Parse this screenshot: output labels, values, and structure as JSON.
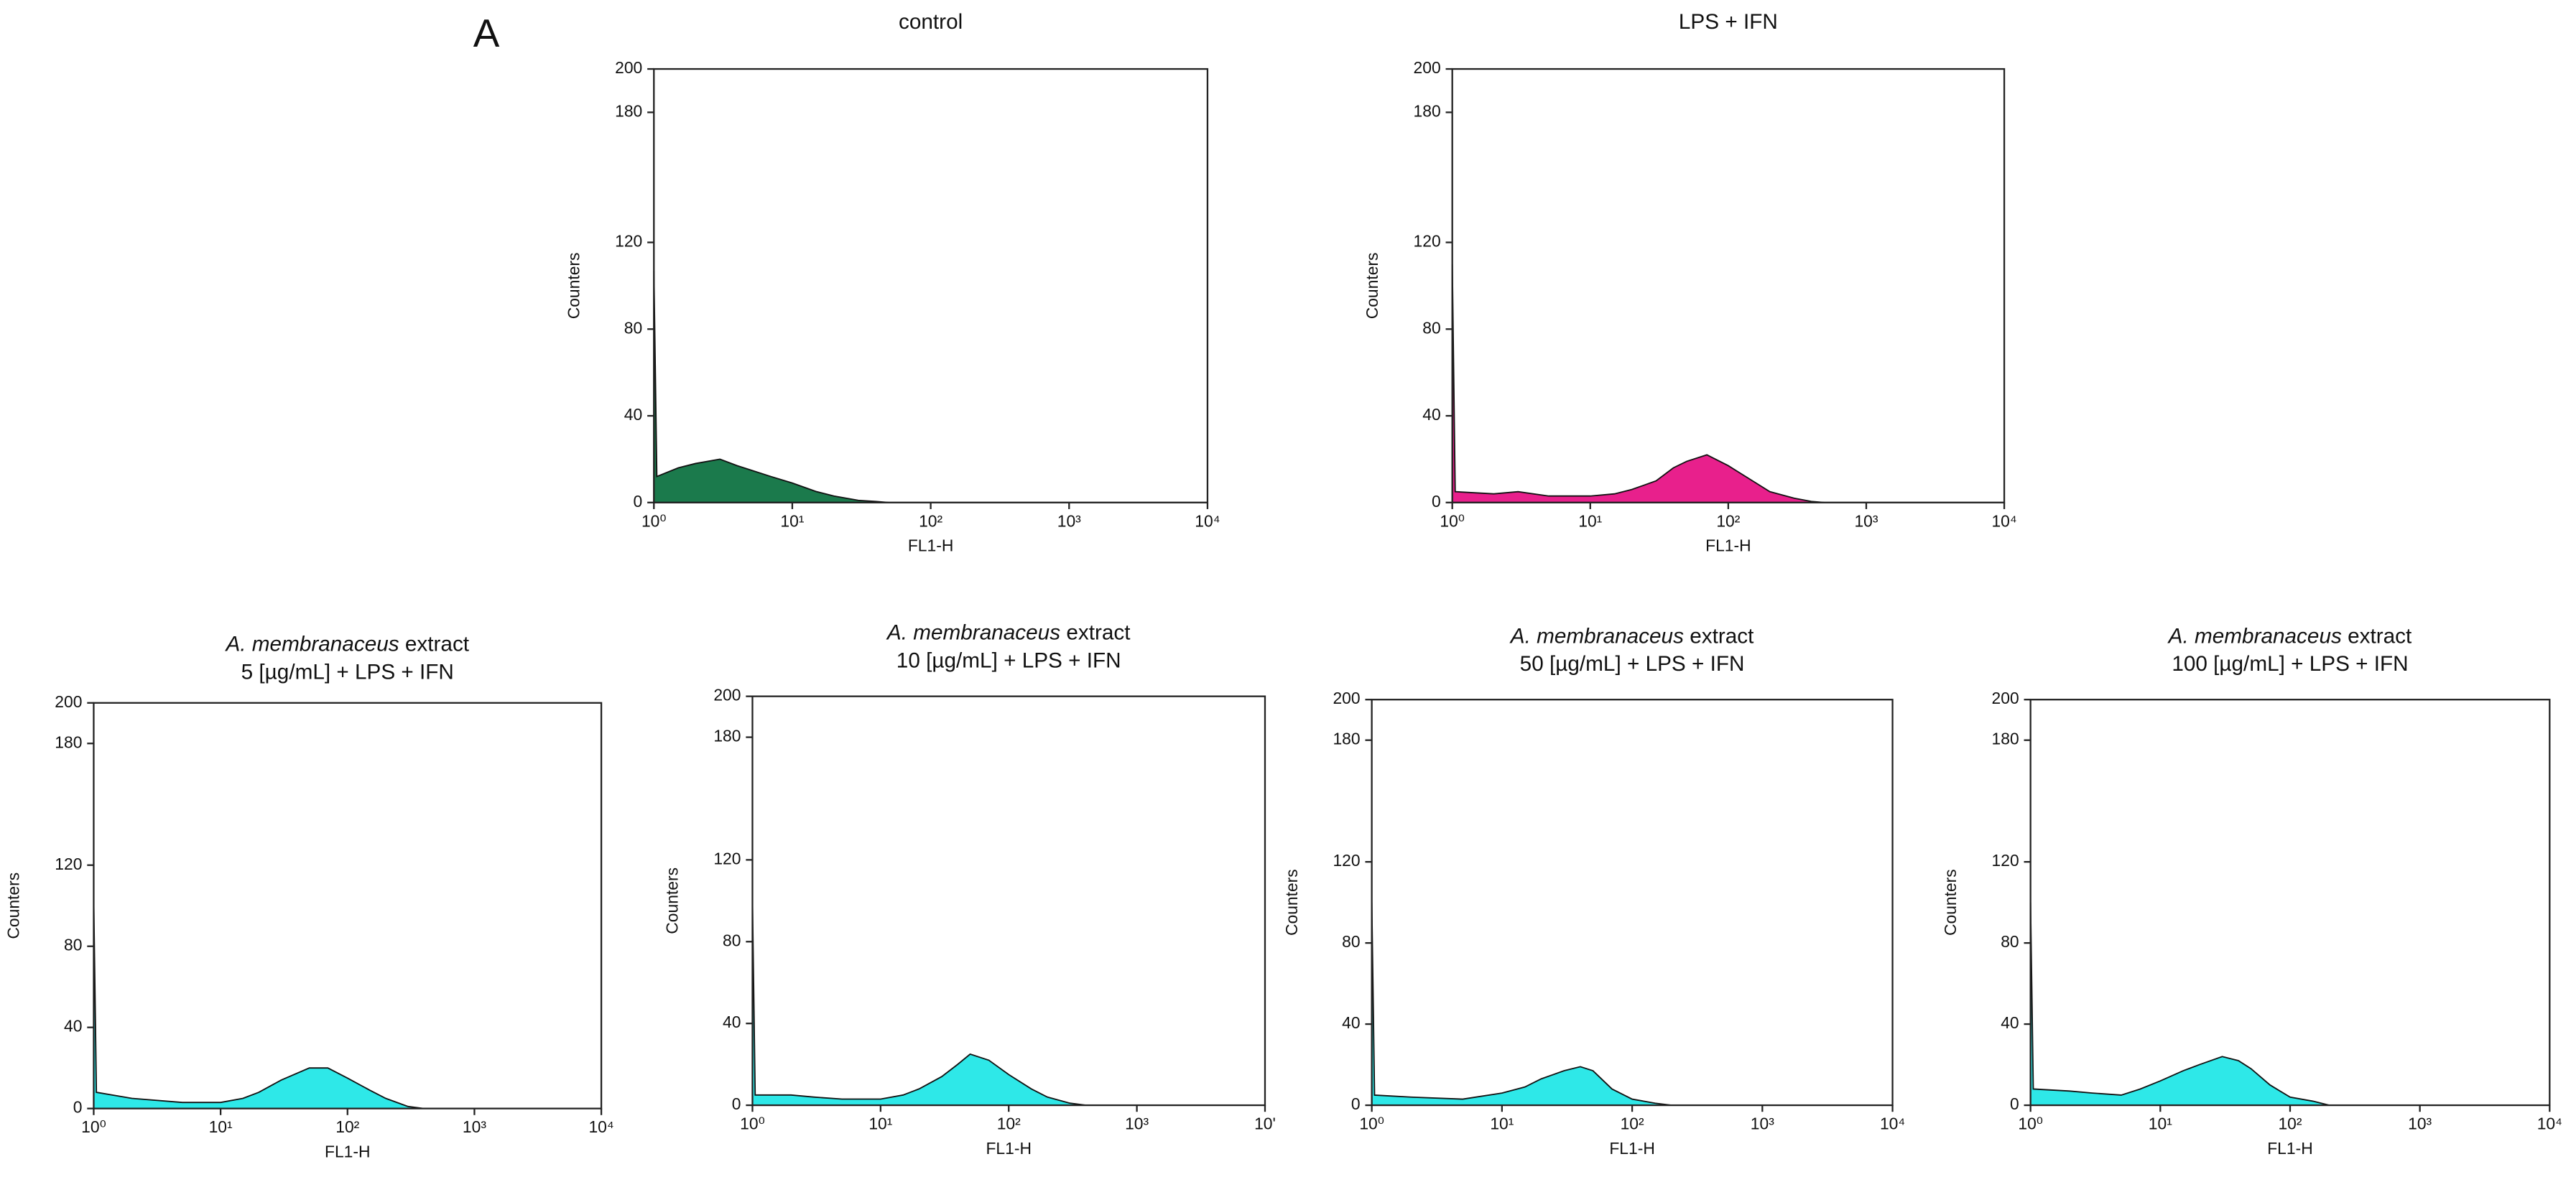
{
  "panel_label": "A",
  "chart_data": [
    {
      "type": "area",
      "title_lines": [
        [
          {
            "text": "control"
          }
        ]
      ],
      "xlabel": "FL1-H",
      "ylabel": "Counters",
      "xscale": "log",
      "color": "#1b7a4c",
      "xlim": [
        1,
        10000
      ],
      "ylim": [
        0,
        200
      ],
      "xticks": [
        {
          "value": 1,
          "label": "10⁰"
        },
        {
          "value": 10,
          "label": "10¹"
        },
        {
          "value": 100,
          "label": "10²"
        },
        {
          "value": 1000,
          "label": "10³"
        },
        {
          "value": 10000,
          "label": "10⁴"
        }
      ],
      "yticks": [
        0,
        40,
        80,
        120,
        180,
        200
      ],
      "x": [
        1,
        1.05,
        1.5,
        2,
        3,
        4,
        5,
        7,
        10,
        15,
        20,
        30,
        40,
        50,
        10000
      ],
      "values": [
        107,
        12,
        16,
        18,
        20,
        17,
        15,
        12,
        9,
        5,
        3,
        1,
        0.5,
        0,
        0
      ]
    },
    {
      "type": "area",
      "title_lines": [
        [
          {
            "text": "LPS + IFN"
          }
        ]
      ],
      "xlabel": "FL1-H",
      "ylabel": "Counters",
      "xscale": "log",
      "color": "#e8208c",
      "xlim": [
        1,
        10000
      ],
      "ylim": [
        0,
        200
      ],
      "xticks": [
        {
          "value": 1,
          "label": "10⁰"
        },
        {
          "value": 10,
          "label": "10¹"
        },
        {
          "value": 100,
          "label": "10²"
        },
        {
          "value": 1000,
          "label": "10³"
        },
        {
          "value": 10000,
          "label": "10⁴"
        }
      ],
      "yticks": [
        0,
        40,
        80,
        120,
        180,
        200
      ],
      "x": [
        1,
        1.05,
        2,
        3,
        5,
        10,
        15,
        20,
        30,
        40,
        50,
        70,
        100,
        150,
        200,
        300,
        400,
        500,
        10000
      ],
      "values": [
        110,
        5,
        4,
        5,
        3,
        3,
        4,
        6,
        10,
        16,
        19,
        22,
        17,
        10,
        5,
        2,
        0.5,
        0,
        0
      ]
    },
    {
      "type": "area",
      "title_lines": [
        [
          {
            "text": "A. membranaceus",
            "italic": true
          },
          {
            "text": " extract"
          }
        ],
        [
          {
            "text": "5 [µg/mL] + LPS + IFN"
          }
        ]
      ],
      "xlabel": "FL1-H",
      "ylabel": "Counters",
      "xscale": "log",
      "color": "#2ee8e8",
      "xlim": [
        1,
        10000
      ],
      "ylim": [
        0,
        200
      ],
      "xticks": [
        {
          "value": 1,
          "label": "10⁰"
        },
        {
          "value": 10,
          "label": "10¹"
        },
        {
          "value": 100,
          "label": "10²"
        },
        {
          "value": 1000,
          "label": "10³"
        },
        {
          "value": 10000,
          "label": "10⁴"
        }
      ],
      "yticks": [
        0,
        40,
        80,
        120,
        180,
        200
      ],
      "x": [
        1,
        1.05,
        2,
        5,
        10,
        15,
        20,
        30,
        50,
        70,
        100,
        150,
        200,
        300,
        400,
        10000
      ],
      "values": [
        103,
        8,
        5,
        3,
        3,
        5,
        8,
        14,
        20,
        20,
        15,
        9,
        5,
        1,
        0,
        0
      ]
    },
    {
      "type": "area",
      "title_lines": [
        [
          {
            "text": "A. membranaceus",
            "italic": true
          },
          {
            "text": " extract"
          }
        ],
        [
          {
            "text": "10 [µg/mL] + LPS + IFN"
          }
        ]
      ],
      "xlabel": "FL1-H",
      "ylabel": "Counters",
      "xscale": "log",
      "color": "#2ee8e8",
      "xlim": [
        1,
        10000
      ],
      "ylim": [
        0,
        200
      ],
      "xticks": [
        {
          "value": 1,
          "label": "10⁰"
        },
        {
          "value": 10,
          "label": "10¹"
        },
        {
          "value": 100,
          "label": "10²"
        },
        {
          "value": 1000,
          "label": "10³"
        },
        {
          "value": 10000,
          "label": "10'"
        }
      ],
      "yticks": [
        0,
        40,
        80,
        120,
        180,
        200
      ],
      "x": [
        1,
        1.05,
        2,
        3,
        5,
        10,
        15,
        20,
        30,
        40,
        50,
        70,
        100,
        150,
        200,
        300,
        400,
        10000
      ],
      "values": [
        100,
        5,
        5,
        4,
        3,
        3,
        5,
        8,
        14,
        20,
        25,
        22,
        15,
        8,
        4,
        1,
        0,
        0
      ]
    },
    {
      "type": "area",
      "title_lines": [
        [
          {
            "text": "A. membranaceus",
            "italic": true
          },
          {
            "text": " extract"
          }
        ],
        [
          {
            "text": "50 [µg/mL] + LPS + IFN"
          }
        ]
      ],
      "xlabel": "FL1-H",
      "ylabel": "Counters",
      "xscale": "log",
      "color": "#2ee8e8",
      "xlim": [
        1,
        10000
      ],
      "ylim": [
        0,
        200
      ],
      "xticks": [
        {
          "value": 1,
          "label": "10⁰"
        },
        {
          "value": 10,
          "label": "10¹"
        },
        {
          "value": 100,
          "label": "10²"
        },
        {
          "value": 1000,
          "label": "10³"
        },
        {
          "value": 10000,
          "label": "10⁴"
        }
      ],
      "yticks": [
        0,
        40,
        80,
        120,
        180,
        200
      ],
      "x": [
        1,
        1.05,
        2,
        5,
        10,
        15,
        20,
        30,
        40,
        50,
        70,
        100,
        150,
        200,
        10000
      ],
      "values": [
        100,
        5,
        4,
        3,
        6,
        9,
        13,
        17,
        19,
        17,
        8,
        3,
        1,
        0,
        0
      ]
    },
    {
      "type": "area",
      "title_lines": [
        [
          {
            "text": "A. membranaceus",
            "italic": true
          },
          {
            "text": " extract"
          }
        ],
        [
          {
            "text": "100 [µg/mL] + LPS + IFN"
          }
        ]
      ],
      "xlabel": "FL1-H",
      "ylabel": "Counters",
      "xscale": "log",
      "color": "#2ee8e8",
      "xlim": [
        1,
        10000
      ],
      "ylim": [
        0,
        200
      ],
      "xticks": [
        {
          "value": 1,
          "label": "10⁰"
        },
        {
          "value": 10,
          "label": "10¹"
        },
        {
          "value": 100,
          "label": "10²"
        },
        {
          "value": 1000,
          "label": "10³"
        },
        {
          "value": 10000,
          "label": "10⁴"
        }
      ],
      "yticks": [
        0,
        40,
        80,
        120,
        180,
        200
      ],
      "x": [
        1,
        1.05,
        2,
        3,
        5,
        7,
        10,
        15,
        20,
        30,
        40,
        50,
        70,
        100,
        150,
        200,
        10000
      ],
      "values": [
        100,
        8,
        7,
        6,
        5,
        8,
        12,
        17,
        20,
        24,
        22,
        18,
        10,
        4,
        2,
        0,
        0
      ]
    }
  ]
}
